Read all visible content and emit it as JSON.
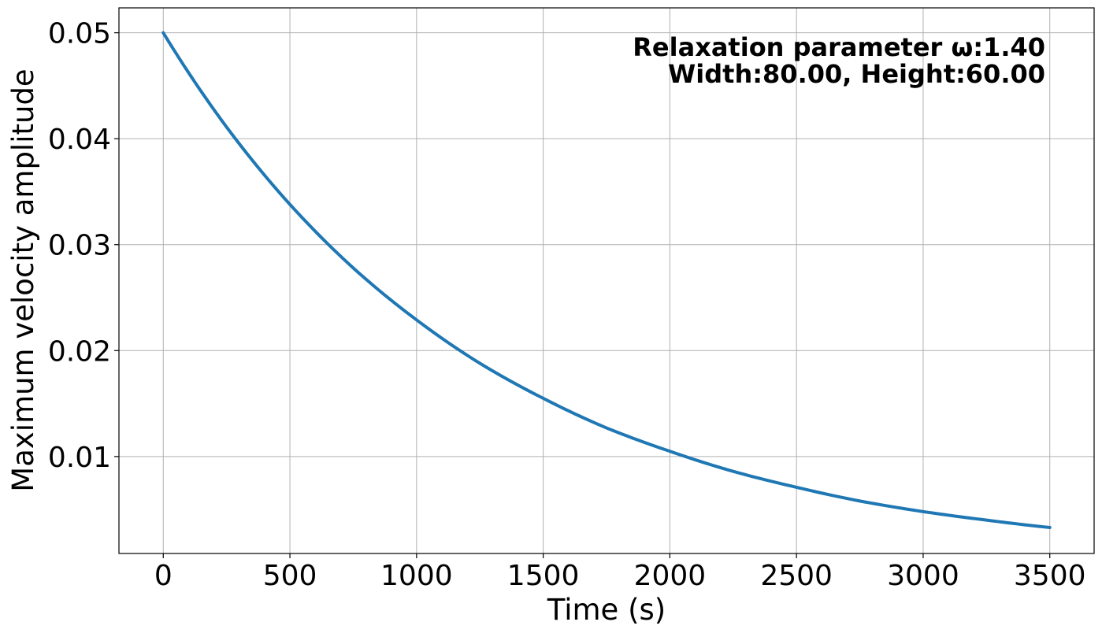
{
  "chart_data": {
    "type": "line",
    "title": "",
    "xlabel": "Time (s)",
    "ylabel": "Maximum velocity amplitude",
    "xlim": [
      -175,
      3675
    ],
    "ylim": [
      0.00085,
      0.05235
    ],
    "xticks": [
      0,
      500,
      1000,
      1500,
      2000,
      2500,
      3000,
      3500
    ],
    "xtick_labels": [
      "0",
      "500",
      "1000",
      "1500",
      "2000",
      "2500",
      "3000",
      "3500"
    ],
    "yticks": [
      0.01,
      0.02,
      0.03,
      0.04,
      0.05
    ],
    "ytick_labels": [
      "0.01",
      "0.02",
      "0.03",
      "0.04",
      "0.05"
    ],
    "grid": true,
    "annotations": [
      "Relaxation parameter ω:1.40",
      "Width:80.00, Height:60.00"
    ],
    "annotation_placement": "top-right",
    "series": [
      {
        "color": "#1f77b4",
        "x": [
          0,
          250,
          500,
          750,
          1000,
          1250,
          1500,
          1750,
          2000,
          2250,
          2500,
          2750,
          3000,
          3250,
          3500
        ],
        "y": [
          0.05,
          0.0411,
          0.0338,
          0.0278,
          0.0229,
          0.0188,
          0.0155,
          0.0127,
          0.0105,
          0.0086,
          0.0071,
          0.0058,
          0.0048,
          0.004,
          0.0033
        ]
      }
    ]
  }
}
